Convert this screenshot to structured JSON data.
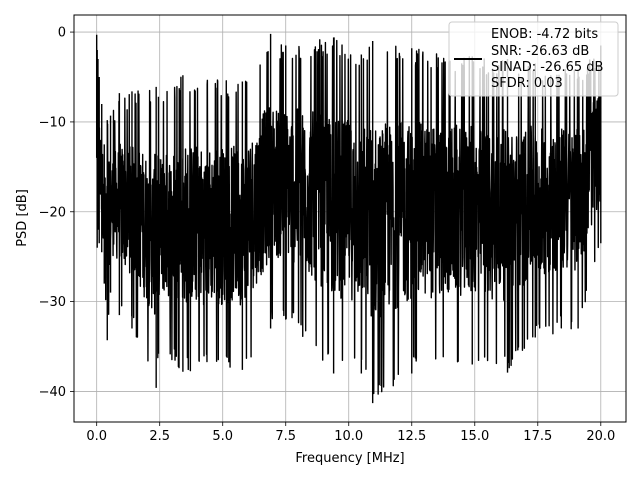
{
  "chart_data": {
    "type": "line",
    "title": "",
    "xlabel": "Frequency [MHz]",
    "ylabel": "PSD [dB]",
    "xlim": [
      -0.9,
      21.0
    ],
    "ylim": [
      -43.4,
      1.9
    ],
    "grid": true,
    "legend_position": "top-right",
    "x_ticks": [
      "0.0",
      "2.5",
      "5.0",
      "7.5",
      "10.0",
      "12.5",
      "15.0",
      "17.5",
      "20.0"
    ],
    "x_tick_values": [
      0,
      2.5,
      5,
      7.5,
      10,
      12.5,
      15,
      17.5,
      20
    ],
    "y_ticks": [
      "0",
      "−10",
      "−20",
      "−30",
      "−40"
    ],
    "y_tick_values": [
      0,
      -10,
      -20,
      -30,
      -40
    ],
    "series": [
      {
        "name": "ENOB: -4.72 bits\nSNR: -26.63 dB\nSINAD: -26.65 dB\nSFDR: 0.03",
        "color": "#000000",
        "x": [
          0.0,
          0.02,
          0.05,
          0.1,
          0.2,
          0.3,
          0.42,
          0.55,
          0.9,
          1.4,
          2.36,
          2.45,
          3.42,
          5.78,
          6.9,
          7.5,
          9.4,
          10.5,
          10.95,
          12.5,
          14.9,
          16.3,
          17.4,
          19.1,
          20.0
        ],
        "peaks": [
          -0.3,
          -2.0,
          -3.0,
          -5.0,
          -8.0,
          -12.5,
          -9.8,
          -9.3,
          -6.8,
          -6.6,
          -6.1,
          -7.2,
          -4.8,
          -5.5,
          -0.2,
          -1.5,
          -0.6,
          -2.5,
          -1.0,
          -1.8,
          -2.7,
          -3.0,
          -3.5,
          -4.2,
          -1.5
        ],
        "troughs": [
          -14.0,
          -24.0,
          -22.0,
          -23.5,
          -24.5,
          -28.0,
          -34.3,
          -29.0,
          -31.5,
          -33.0,
          -39.6,
          -35.8,
          -37.8,
          -37.6,
          -33.0,
          -32.0,
          -38.0,
          -38.0,
          -41.3,
          -38.0,
          -37.0,
          -37.9,
          -34.0,
          -33.0,
          -23.5
        ]
      }
    ]
  },
  "legend": {
    "lines": [
      "ENOB: -4.72 bits",
      "SNR: -26.63 dB",
      "SINAD: -26.65 dB",
      "SFDR: 0.03"
    ]
  }
}
